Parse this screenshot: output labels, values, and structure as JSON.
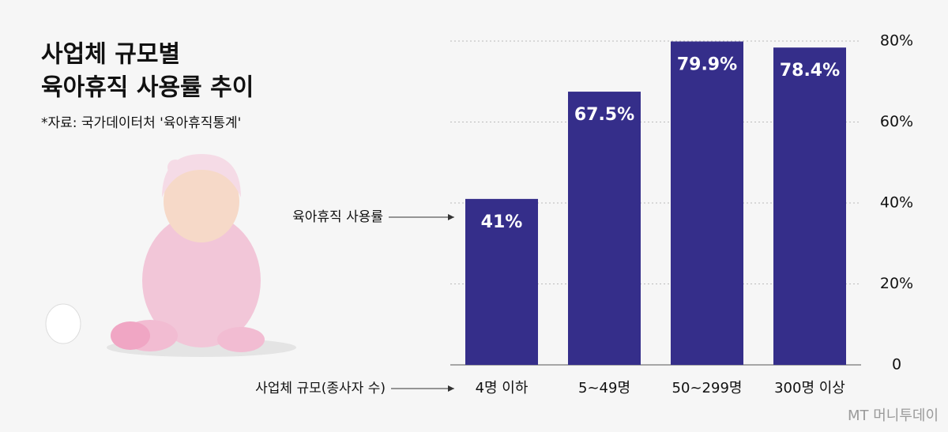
{
  "chart_data": {
    "type": "bar",
    "title": [
      "사업체 규모별",
      "육아휴직 사용률 추이"
    ],
    "source": "*자료: 국가데이터처 '육아휴직통계'",
    "categories": [
      "4명 이하",
      "5~49명",
      "50~299명",
      "300명 이상"
    ],
    "values": [
      41,
      67.5,
      79.9,
      78.4
    ],
    "value_labels": [
      "41%",
      "67.5%",
      "79.9%",
      "78.4%"
    ],
    "color": "#352e8a",
    "ylim": [
      0,
      80
    ],
    "yticks": [
      0,
      {
        "value": 20,
        "label": "20%"
      },
      {
        "value": 40,
        "label": "40%"
      },
      {
        "value": 60,
        "label": "60%"
      },
      {
        "value": 80,
        "label": "80%"
      }
    ],
    "grid": true,
    "annotations": [
      "육아휴직 사용률",
      "사업체 규모(종사자 수)"
    ],
    "watermark": "MT 머니투데이"
  }
}
